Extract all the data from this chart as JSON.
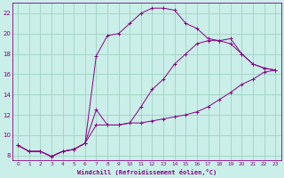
{
  "xlabel": "Windchill (Refroidissement éolien,°C)",
  "bg_color": "#caeee8",
  "line_color": "#880088",
  "grid_color": "#99ccbb",
  "xlim": [
    -0.5,
    23.5
  ],
  "ylim": [
    7.5,
    23.0
  ],
  "yticks": [
    8,
    10,
    12,
    14,
    16,
    18,
    20,
    22
  ],
  "xticks": [
    0,
    1,
    2,
    3,
    4,
    5,
    6,
    7,
    8,
    9,
    10,
    11,
    12,
    13,
    14,
    15,
    16,
    17,
    18,
    19,
    20,
    21,
    22,
    23
  ],
  "line1_x": [
    0,
    1,
    2,
    3,
    4,
    5,
    6,
    7,
    8,
    9,
    10,
    11,
    12,
    13,
    14,
    15,
    16,
    17,
    18,
    19,
    20,
    21,
    22,
    23
  ],
  "line1_y": [
    9.0,
    8.4,
    8.4,
    7.9,
    8.4,
    8.6,
    9.2,
    11.0,
    11.0,
    11.0,
    11.2,
    11.2,
    11.4,
    11.6,
    11.8,
    12.0,
    12.3,
    12.8,
    13.5,
    14.2,
    15.0,
    15.5,
    16.2,
    16.4
  ],
  "line2_x": [
    0,
    1,
    2,
    3,
    4,
    5,
    6,
    7,
    8,
    9,
    10,
    11,
    12,
    13,
    14,
    15,
    16,
    17,
    18,
    19,
    20,
    21,
    22,
    23
  ],
  "line2_y": [
    9.0,
    8.4,
    8.4,
    7.9,
    8.4,
    8.6,
    9.2,
    17.8,
    19.8,
    20.0,
    21.0,
    22.0,
    22.5,
    22.5,
    22.3,
    21.0,
    20.5,
    19.5,
    19.3,
    19.5,
    18.0,
    17.0,
    16.6,
    16.4
  ],
  "line3_x": [
    0,
    1,
    2,
    3,
    4,
    5,
    6,
    7,
    8,
    9,
    10,
    11,
    12,
    13,
    14,
    15,
    16,
    17,
    18,
    19,
    20,
    21,
    22,
    23
  ],
  "line3_y": [
    9.0,
    8.4,
    8.4,
    7.9,
    8.4,
    8.6,
    9.2,
    12.5,
    11.0,
    11.0,
    11.2,
    12.8,
    14.5,
    15.5,
    17.0,
    18.0,
    19.0,
    19.3,
    19.3,
    19.0,
    18.0,
    17.0,
    16.6,
    16.4
  ]
}
